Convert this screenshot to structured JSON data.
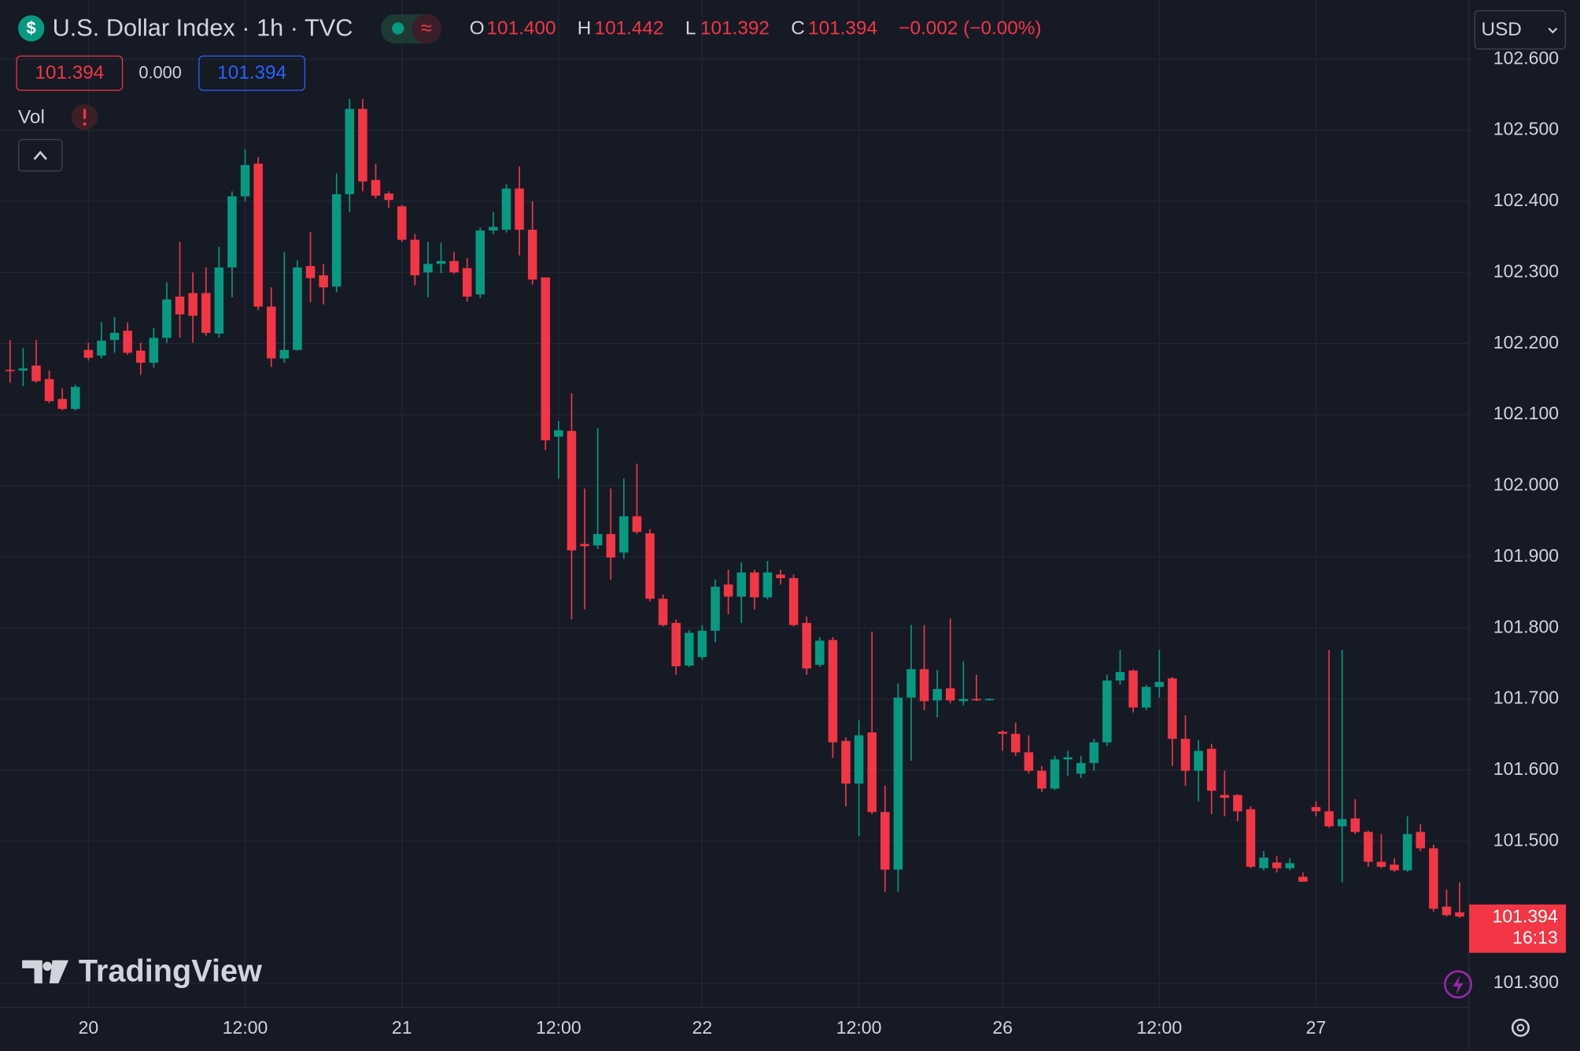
{
  "chart_data": {
    "type": "candlestick",
    "title": "U.S. Dollar Index · 1h · TVC",
    "icon": "$",
    "compare": "≈",
    "open_label": "O",
    "open_text": "101.400",
    "high_label": "H",
    "high_text": "101.442",
    "low_label": "L",
    "low_text": "101.392",
    "close_label": "C",
    "close_text": "101.394",
    "change": "−0.002 (−0.00%)",
    "sell": "101.394",
    "spread": "0.000",
    "buy": "101.394",
    "volume_label": "Vol",
    "currency": "USD",
    "brand": "TradingView",
    "up_color": "#089981",
    "down_color": "#f23645",
    "grid": true,
    "ylim": [
      101.266,
      102.683
    ],
    "yticks": [
      {
        "value": 101.3,
        "label": "101.300"
      },
      {
        "value": 101.5,
        "label": "101.500"
      },
      {
        "value": 101.6,
        "label": "101.600"
      },
      {
        "value": 101.7,
        "label": "101.700"
      },
      {
        "value": 101.8,
        "label": "101.800"
      },
      {
        "value": 101.9,
        "label": "101.900"
      },
      {
        "value": 102,
        "label": "102.000"
      },
      {
        "value": 102.1,
        "label": "102.100"
      },
      {
        "value": 102.2,
        "label": "102.200"
      },
      {
        "value": 102.3,
        "label": "102.300"
      },
      {
        "value": 102.4,
        "label": "102.400"
      },
      {
        "value": 102.5,
        "label": "102.500"
      },
      {
        "value": 102.6,
        "label": "102.600"
      }
    ],
    "price_tag": {
      "value": 101.394,
      "label": "101.394"
    },
    "countdown": "16:13",
    "categories": [
      null,
      null,
      null,
      null,
      null,
      null,
      "20",
      null,
      null,
      null,
      null,
      null,
      null,
      null,
      null,
      null,
      null,
      null,
      "12:00",
      null,
      null,
      null,
      null,
      null,
      null,
      null,
      null,
      null,
      null,
      null,
      "21",
      null,
      null,
      null,
      null,
      null,
      null,
      null,
      null,
      null,
      null,
      null,
      "12:00",
      null,
      null,
      null,
      null,
      null,
      null,
      null,
      null,
      null,
      null,
      "22",
      null,
      null,
      null,
      null,
      null,
      null,
      null,
      null,
      null,
      null,
      null,
      "12:00",
      null,
      null,
      null,
      null,
      null,
      null,
      null,
      null,
      null,
      null,
      "26",
      null,
      null,
      null,
      null,
      null,
      null,
      null,
      null,
      null,
      null,
      null,
      "12:00",
      null,
      null,
      null,
      null,
      null,
      null,
      null,
      null,
      null,
      null,
      null,
      "27",
      null,
      null,
      null,
      null,
      null,
      null,
      null,
      null,
      null,
      null,
      null
    ],
    "open": [
      102.163,
      102.162,
      102.169,
      102.15,
      102.122,
      102.108,
      102.191,
      102.183,
      102.205,
      102.218,
      102.19,
      102.173,
      102.208,
      102.266,
      102.271,
      102.271,
      102.214,
      102.307,
      102.407,
      102.453,
      102.252,
      102.179,
      102.191,
      102.309,
      102.296,
      102.28,
      102.41,
      102.53,
      102.43,
      102.411,
      102.393,
      102.346,
      102.3,
      102.312,
      102.316,
      102.306,
      102.269,
      102.359,
      102.36,
      102.418,
      102.36,
      102.293,
      102.069,
      102.077,
      101.918,
      101.916,
      101.932,
      101.906,
      101.957,
      101.933,
      101.841,
      101.807,
      101.747,
      101.759,
      101.796,
      101.861,
      101.844,
      101.878,
      101.843,
      101.875,
      101.87,
      101.807,
      101.748,
      101.783,
      101.641,
      101.581,
      101.653,
      101.541,
      101.46,
      101.702,
      101.742,
      101.698,
      101.715,
      101.697,
      101.7,
      101.699,
      101.654,
      101.651,
      101.625,
      101.599,
      101.574,
      101.615,
      101.595,
      101.61,
      101.639,
      101.726,
      101.74,
      101.688,
      101.717,
      101.729,
      101.644,
      101.599,
      101.63,
      101.565,
      101.565,
      101.545,
      101.462,
      101.47,
      101.462,
      101.45,
      101.548,
      101.542,
      101.521,
      101.532,
      101.513,
      101.471,
      101.467,
      101.459,
      101.513,
      101.49,
      101.408,
      101.4
    ],
    "high": [
      102.205,
      102.194,
      102.205,
      102.162,
      102.137,
      102.142,
      102.201,
      102.23,
      102.237,
      102.23,
      102.201,
      102.222,
      102.286,
      102.343,
      102.3,
      102.307,
      102.336,
      102.414,
      102.473,
      102.462,
      102.279,
      102.329,
      102.317,
      102.357,
      102.312,
      102.439,
      102.544,
      102.544,
      102.453,
      102.414,
      102.395,
      102.354,
      102.343,
      102.342,
      102.329,
      102.32,
      102.363,
      102.385,
      102.424,
      102.449,
      102.4,
      102.293,
      102.091,
      102.13,
      101.996,
      102.081,
      101.996,
      102.01,
      102.031,
      101.939,
      101.847,
      101.812,
      101.797,
      101.804,
      101.868,
      101.882,
      101.892,
      101.882,
      101.894,
      101.882,
      101.875,
      101.816,
      101.787,
      101.787,
      101.646,
      101.67,
      101.795,
      101.578,
      101.722,
      101.804,
      101.804,
      101.741,
      101.813,
      101.753,
      101.734,
      101.701,
      101.656,
      101.667,
      101.649,
      101.606,
      101.62,
      101.627,
      101.62,
      101.644,
      101.734,
      101.769,
      101.742,
      101.72,
      101.769,
      101.731,
      101.677,
      101.642,
      101.637,
      101.599,
      101.566,
      101.549,
      101.486,
      101.479,
      101.476,
      101.456,
      101.556,
      101.769,
      101.769,
      101.559,
      101.515,
      101.51,
      101.476,
      101.535,
      101.524,
      101.495,
      101.432,
      101.442
    ],
    "low": [
      102.145,
      102.14,
      102.145,
      102.116,
      102.106,
      102.106,
      102.176,
      102.179,
      102.187,
      102.184,
      102.156,
      102.166,
      102.201,
      102.208,
      102.201,
      102.211,
      102.208,
      102.265,
      102.4,
      102.247,
      102.167,
      102.173,
      102.19,
      102.258,
      102.255,
      102.272,
      102.385,
      102.414,
      102.404,
      102.391,
      102.343,
      102.282,
      102.265,
      102.299,
      102.298,
      102.259,
      102.264,
      102.354,
      102.356,
      102.324,
      102.283,
      102.05,
      102.01,
      101.812,
      101.826,
      101.911,
      101.868,
      101.897,
      101.932,
      101.837,
      101.802,
      101.734,
      101.745,
      101.755,
      101.78,
      101.819,
      101.807,
      101.826,
      101.84,
      101.861,
      101.802,
      101.734,
      101.745,
      101.617,
      101.549,
      101.507,
      101.538,
      101.429,
      101.429,
      101.613,
      101.684,
      101.674,
      101.694,
      101.691,
      101.697,
      101.698,
      101.627,
      101.62,
      101.595,
      101.569,
      101.572,
      101.592,
      101.589,
      101.599,
      101.634,
      101.72,
      101.681,
      101.684,
      101.702,
      101.606,
      101.578,
      101.556,
      101.538,
      101.535,
      101.528,
      101.462,
      101.459,
      101.456,
      101.459,
      101.443,
      101.535,
      101.519,
      101.442,
      101.51,
      101.464,
      101.462,
      101.457,
      101.457,
      101.486,
      101.401,
      101.394,
      101.392
    ],
    "close": [
      102.162,
      102.165,
      102.147,
      102.119,
      102.108,
      102.139,
      102.18,
      102.204,
      102.215,
      102.187,
      102.173,
      102.208,
      102.262,
      102.241,
      102.239,
      102.215,
      102.307,
      102.407,
      102.451,
      102.252,
      102.179,
      102.191,
      102.307,
      102.292,
      102.279,
      102.41,
      102.53,
      102.428,
      102.408,
      102.402,
      102.346,
      102.296,
      102.312,
      102.316,
      102.3,
      102.266,
      102.359,
      102.364,
      102.418,
      102.36,
      102.29,
      102.064,
      102.078,
      101.909,
      101.915,
      101.932,
      101.899,
      101.957,
      101.935,
      101.841,
      101.804,
      101.746,
      101.793,
      101.796,
      101.858,
      101.844,
      101.878,
      101.843,
      101.878,
      101.87,
      101.804,
      101.743,
      101.782,
      101.639,
      101.581,
      101.649,
      101.541,
      101.46,
      101.702,
      101.742,
      101.697,
      101.714,
      101.698,
      101.7,
      101.699,
      101.7,
      101.651,
      101.625,
      101.599,
      101.574,
      101.615,
      101.618,
      101.61,
      101.639,
      101.726,
      101.738,
      101.688,
      101.717,
      101.724,
      101.644,
      101.599,
      101.627,
      101.571,
      101.561,
      101.542,
      101.464,
      101.477,
      101.462,
      101.469,
      101.443,
      101.542,
      101.521,
      101.531,
      101.513,
      101.471,
      101.464,
      101.459,
      101.51,
      101.49,
      101.405,
      101.396,
      101.394
    ]
  }
}
